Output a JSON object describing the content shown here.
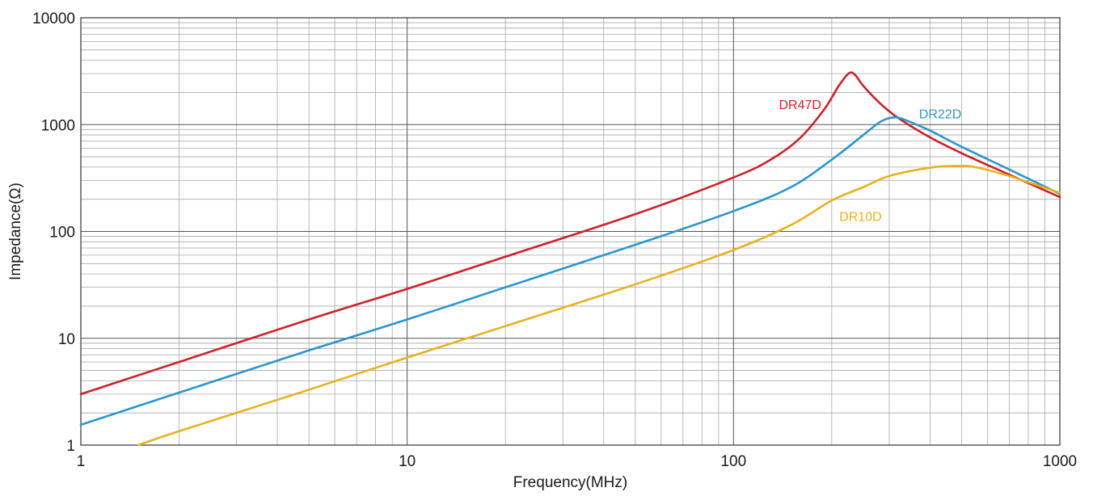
{
  "chart_data": {
    "type": "line",
    "title": "",
    "xlabel": "Frequency(MHz)",
    "ylabel": "Impedance(Ω)",
    "x_scale": "log",
    "y_scale": "log",
    "xlim": [
      1,
      1000
    ],
    "ylim": [
      1,
      10000
    ],
    "grid": true,
    "x_ticks": [
      "1",
      "10",
      "100",
      "1000"
    ],
    "y_ticks": [
      "1",
      "10",
      "100",
      "1000",
      "10000"
    ],
    "series": [
      {
        "name": "DR47D",
        "color": "#cc2229",
        "points": [
          [
            1,
            3.0
          ],
          [
            2,
            6.0
          ],
          [
            5,
            15
          ],
          [
            10,
            29
          ],
          [
            20,
            58
          ],
          [
            50,
            145
          ],
          [
            100,
            320
          ],
          [
            130,
            470
          ],
          [
            160,
            750
          ],
          [
            190,
            1400
          ],
          [
            210,
            2300
          ],
          [
            225,
            3000
          ],
          [
            235,
            2950
          ],
          [
            250,
            2300
          ],
          [
            280,
            1600
          ],
          [
            320,
            1150
          ],
          [
            400,
            760
          ],
          [
            500,
            540
          ],
          [
            700,
            340
          ],
          [
            1000,
            210
          ]
        ]
      },
      {
        "name": "DR22D",
        "color": "#2b96cf",
        "points": [
          [
            1,
            1.55
          ],
          [
            2,
            3.1
          ],
          [
            5,
            7.7
          ],
          [
            10,
            15
          ],
          [
            20,
            30
          ],
          [
            50,
            75
          ],
          [
            100,
            155
          ],
          [
            150,
            260
          ],
          [
            200,
            470
          ],
          [
            250,
            800
          ],
          [
            280,
            1050
          ],
          [
            300,
            1150
          ],
          [
            320,
            1160
          ],
          [
            350,
            1050
          ],
          [
            400,
            880
          ],
          [
            500,
            620
          ],
          [
            700,
            380
          ],
          [
            1000,
            225
          ]
        ]
      },
      {
        "name": "DR10D",
        "color": "#e8b121",
        "points": [
          [
            1.5,
            1.0
          ],
          [
            2,
            1.35
          ],
          [
            5,
            3.3
          ],
          [
            10,
            6.6
          ],
          [
            20,
            13
          ],
          [
            50,
            32
          ],
          [
            100,
            67
          ],
          [
            150,
            115
          ],
          [
            200,
            195
          ],
          [
            250,
            260
          ],
          [
            300,
            330
          ],
          [
            400,
            395
          ],
          [
            480,
            410
          ],
          [
            550,
            400
          ],
          [
            700,
            330
          ],
          [
            1000,
            230
          ]
        ]
      }
    ],
    "annotations": [
      {
        "text": "DR47D",
        "color": "#cc2229",
        "x": 160,
        "y": 1400
      },
      {
        "text": "DR22D",
        "color": "#2b96cf",
        "x": 430,
        "y": 1140
      },
      {
        "text": "DR10D",
        "color": "#e8b121",
        "x": 245,
        "y": 125
      }
    ]
  }
}
